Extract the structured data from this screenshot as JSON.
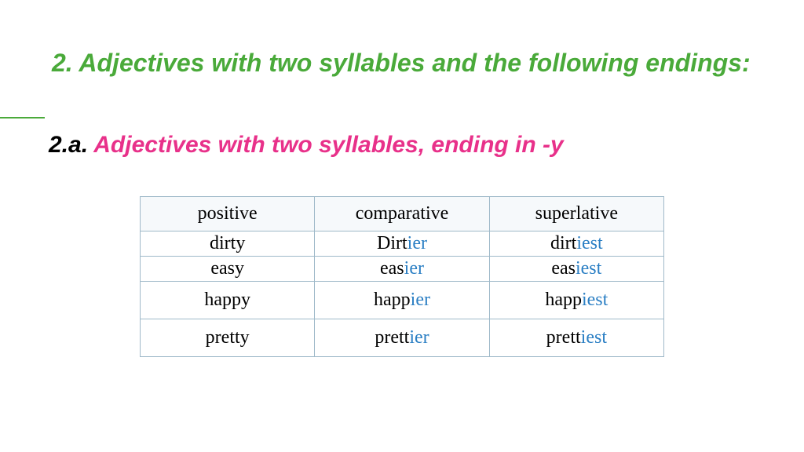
{
  "heading1": "2. Adjectives with two syllables and the following endings:",
  "heading2_prefix": "2.a. ",
  "heading2_main": "Adjectives with two syllables, ending in -y",
  "table": {
    "headers": [
      "positive",
      "comparative",
      "superlative"
    ],
    "rows": [
      {
        "height": "short",
        "cells": [
          {
            "base": "dirty",
            "suffix": ""
          },
          {
            "base": "Dirt",
            "suffix": "ier"
          },
          {
            "base": "dirt",
            "suffix": "iest"
          }
        ]
      },
      {
        "height": "short",
        "cells": [
          {
            "base": "easy",
            "suffix": ""
          },
          {
            "base": "eas",
            "suffix": "ier"
          },
          {
            "base": "eas",
            "suffix": "iest"
          }
        ]
      },
      {
        "height": "tall",
        "cells": [
          {
            "base": "happy",
            "suffix": ""
          },
          {
            "base": "happ",
            "suffix": "ier"
          },
          {
            "base": "happ",
            "suffix": "iest"
          }
        ]
      },
      {
        "height": "tall",
        "cells": [
          {
            "base": "pretty",
            "suffix": ""
          },
          {
            "base": "prett",
            "suffix": "ier"
          },
          {
            "base": "prett",
            "suffix": "iest"
          }
        ]
      }
    ]
  },
  "colors": {
    "green": "#4aaa3a",
    "pink": "#e8318a",
    "blue": "#2b7fc4",
    "border": "#9fb9c9",
    "header_bg": "#f6f9fb"
  }
}
